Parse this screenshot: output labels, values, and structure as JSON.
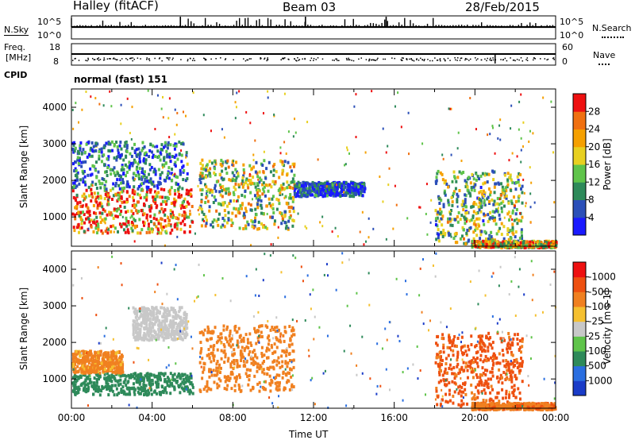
{
  "header": {
    "station": "Halley (fitACF)",
    "beam": "Beam 03",
    "date": "28/Feb/2015"
  },
  "sky_panel": {
    "left_label": "N.Sky",
    "right_label": "N.Search",
    "left_ticks": [
      "10^5",
      "10^0"
    ],
    "right_ticks": [
      "10^5",
      "10^0"
    ]
  },
  "freq_panel": {
    "left_label_1": "Freq.",
    "left_label_2": "[MHz]",
    "right_label": "Nave",
    "left_ticks": [
      "18",
      "8"
    ],
    "right_ticks": [
      "60",
      "0"
    ]
  },
  "cpid": {
    "label": "CPID",
    "value": "normal (fast) 151"
  },
  "chart_data": [
    {
      "type": "heatmap",
      "title": "",
      "ylabel": "Slant Range [km]",
      "xlabel": "",
      "ylim": [
        200,
        4500
      ],
      "yticks": [
        "1000",
        "2000",
        "3000",
        "4000"
      ],
      "colorbar": {
        "label": "Power [dB]",
        "ticks": [
          "4",
          "8",
          "12",
          "16",
          "20",
          "24",
          "28"
        ],
        "colors": [
          "#1a1aff",
          "#2b4fb8",
          "#2e8a5a",
          "#5fc44a",
          "#e8d020",
          "#f5a000",
          "#f07010",
          "#ee1010"
        ]
      },
      "echo_regions": [
        {
          "t": [
            0.0,
            6.0
          ],
          "range": [
            600,
            1800
          ],
          "value": 24
        },
        {
          "t": [
            0.0,
            5.7
          ],
          "range": [
            1800,
            3100
          ],
          "value": 8
        },
        {
          "t": [
            6.3,
            11.0
          ],
          "range": [
            700,
            2600
          ],
          "value": 16
        },
        {
          "t": [
            11.0,
            14.5
          ],
          "range": [
            1600,
            2000
          ],
          "value": 6
        },
        {
          "t": [
            18.0,
            22.3
          ],
          "range": [
            300,
            2300
          ],
          "value": 14
        },
        {
          "t": [
            19.8,
            24.0
          ],
          "range": [
            200,
            380
          ],
          "value": 22
        }
      ]
    },
    {
      "type": "heatmap",
      "title": "",
      "ylabel": "Slant Range [km]",
      "xlabel": "Time UT",
      "ylim": [
        200,
        4500
      ],
      "yticks": [
        "1000",
        "2000",
        "3000",
        "4000"
      ],
      "xticks": [
        "00:00",
        "04:00",
        "08:00",
        "12:00",
        "16:00",
        "20:00",
        "00:00"
      ],
      "colorbar": {
        "label": "Velocity [m s-1]",
        "ticks": [
          "1000",
          "500",
          "100",
          "25",
          "-25",
          "-100",
          "-500",
          "-1000"
        ],
        "colors": [
          "#1a3cc8",
          "#2a6ee0",
          "#2e8a5a",
          "#5fc44a",
          "#c8c8c8",
          "#f5c030",
          "#f08020",
          "#ee5010",
          "#ee1010"
        ]
      },
      "echo_regions": [
        {
          "t": [
            0.0,
            6.0
          ],
          "range": [
            600,
            1200
          ],
          "value": 300
        },
        {
          "t": [
            0.0,
            2.5
          ],
          "range": [
            1200,
            1800
          ],
          "value": -150
        },
        {
          "t": [
            3.0,
            5.7
          ],
          "range": [
            2100,
            3000
          ],
          "value": 0
        },
        {
          "t": [
            6.3,
            11.0
          ],
          "range": [
            700,
            2500
          ],
          "value": -200
        },
        {
          "t": [
            18.0,
            22.3
          ],
          "range": [
            300,
            2300
          ],
          "value": -700
        },
        {
          "t": [
            19.8,
            24.0
          ],
          "range": [
            200,
            380
          ],
          "value": -400
        }
      ]
    }
  ]
}
